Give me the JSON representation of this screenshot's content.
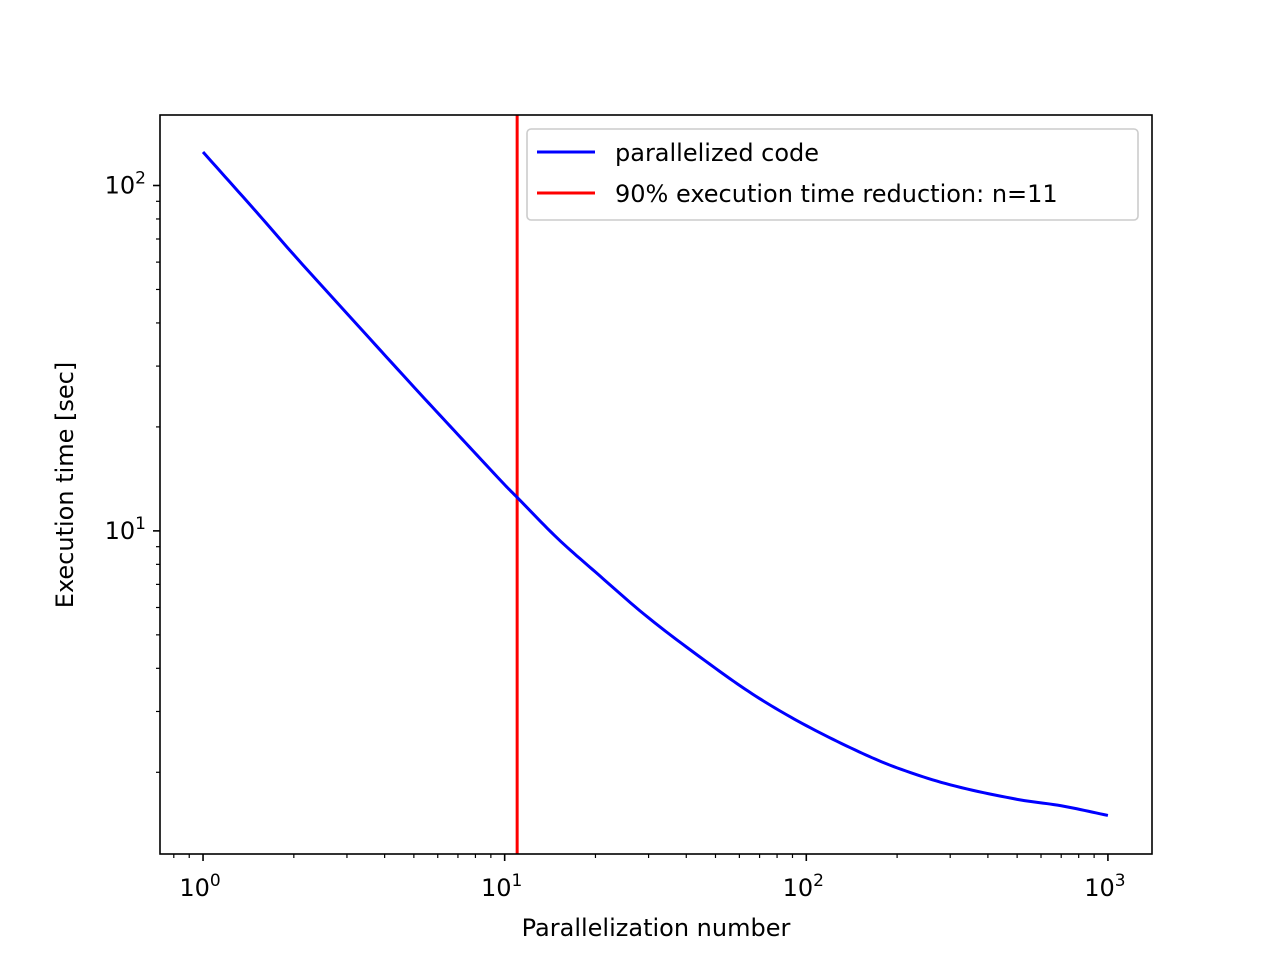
{
  "chart_data": {
    "type": "line",
    "title": "",
    "xlabel": "Parallelization number",
    "ylabel": "Execution time [sec]",
    "x_scale": "log",
    "y_scale": "log",
    "xlim": [
      0.72,
      1400
    ],
    "ylim": [
      1.16,
      160
    ],
    "x_ticks": [
      {
        "value": 1,
        "base": "10",
        "exp": "0"
      },
      {
        "value": 10,
        "base": "10",
        "exp": "1"
      },
      {
        "value": 100,
        "base": "10",
        "exp": "2"
      },
      {
        "value": 1000,
        "base": "10",
        "exp": "3"
      }
    ],
    "y_ticks": [
      {
        "value": 10,
        "base": "10",
        "exp": "1"
      },
      {
        "value": 100,
        "base": "10",
        "exp": "2"
      }
    ],
    "grid": false,
    "legend_position": "top-right",
    "series": [
      {
        "name": "parallelized code",
        "color": "#0000ff",
        "x": [
          1,
          1.5,
          2,
          3,
          5,
          7,
          10,
          11,
          15,
          20,
          30,
          50,
          70,
          100,
          150,
          200,
          300,
          500,
          700,
          1000
        ],
        "y": [
          125,
          84,
          63,
          42.6,
          26.1,
          19.0,
          13.6,
          12.5,
          9.5,
          7.6,
          5.6,
          4.0,
          3.27,
          2.73,
          2.29,
          2.06,
          1.84,
          1.67,
          1.6,
          1.5
        ]
      }
    ],
    "vlines": [
      {
        "name": "90% execution time reduction: n=11",
        "x": 11,
        "color": "#ff0000"
      }
    ]
  }
}
